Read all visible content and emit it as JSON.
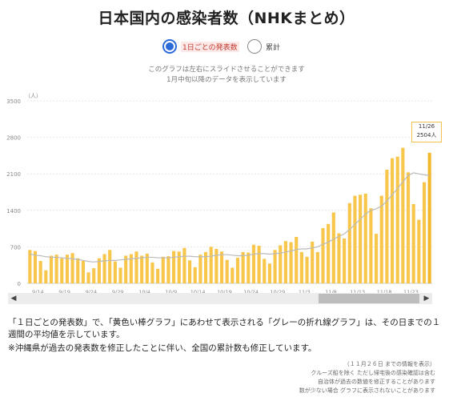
{
  "page": {
    "title": "日本国内の感染者数（NHKまとめ）",
    "radio_daily": "1日ごとの発表数",
    "radio_total": "累計",
    "hint1": "このグラフは左右にスライドさせることができます",
    "hint2": "1月中旬以降のデータを表示しています",
    "note1": "「１日ごとの発表数」で、「黄色い棒グラフ」にあわせて表示される「グレーの折れ線グラフ」は、その日までの１週間の平均値を示しています。",
    "note2": "※沖縄県が過去の発表数を修正したことに伴い、全国の累計数も修正しています。",
    "small1": "（１１月２６日 までの情報を表示）",
    "small2": "クルーズ船を除く ただし帰宅後の感染確認は含む",
    "small3": "自治体が過去の数値を修正することがあります",
    "small4": "数が少ない場合 グラフに表示されないことがあります",
    "scroll_left": "◀",
    "scroll_right": "▶"
  },
  "tooltip": {
    "date": "11/26",
    "value": "2504人"
  },
  "colors": {
    "bar": "#f7c64b",
    "bar_last": "#f2b82e",
    "avg_line": "#bbbbbb",
    "accent": "#2a6bd8"
  },
  "chart_data": {
    "type": "bar",
    "title": "",
    "ylabel": "（人）",
    "ylim": [
      0,
      3500
    ],
    "yticks": [
      0,
      700,
      1400,
      2100,
      2800,
      3500
    ],
    "xticks": [
      "9/14",
      "9/19",
      "9/24",
      "9/29",
      "10/4",
      "10/9",
      "10/14",
      "10/19",
      "10/24",
      "10/29",
      "11/3",
      "11/8",
      "11/13",
      "11/18",
      "11/23"
    ],
    "series": [
      {
        "values": [
          640,
          620,
          430,
          250,
          530,
          550,
          480,
          550,
          580,
          480,
          430,
          210,
          290,
          480,
          560,
          640,
          420,
          300,
          530,
          560,
          610,
          530,
          570,
          400,
          280,
          510,
          520,
          620,
          610,
          680,
          440,
          310,
          550,
          600,
          700,
          660,
          610,
          450,
          300,
          490,
          600,
          590,
          740,
          720,
          470,
          380,
          640,
          730,
          810,
          790,
          890,
          600,
          510,
          800,
          600,
          1060,
          1140,
          1360,
          960,
          860,
          1540,
          1680,
          1700,
          1720,
          1440,
          950,
          1680,
          2180,
          2400,
          2430,
          2600,
          2130,
          1520,
          1220,
          1940,
          2504
        ]
      },
      {
        "values": [
          560,
          540,
          530,
          510,
          500,
          500,
          490,
          480,
          470,
          460,
          440,
          420,
          410,
          420,
          430,
          440,
          440,
          450,
          460,
          470,
          480,
          490,
          500,
          500,
          490,
          490,
          490,
          500,
          510,
          520,
          520,
          510,
          510,
          510,
          520,
          540,
          550,
          550,
          540,
          530,
          530,
          540,
          560,
          570,
          570,
          560,
          570,
          580,
          600,
          620,
          650,
          660,
          660,
          680,
          700,
          750,
          790,
          850,
          900,
          950,
          1030,
          1130,
          1230,
          1330,
          1400,
          1430,
          1480,
          1580,
          1700,
          1820,
          1950,
          2070,
          2120,
          2100,
          2080,
          2070
        ]
      }
    ]
  }
}
